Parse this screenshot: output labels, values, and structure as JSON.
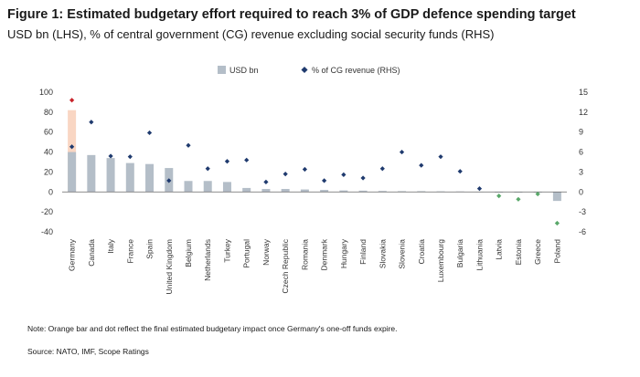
{
  "title": "Figure 1: Estimated budgetary effort required to reach 3% of GDP defence spending target",
  "subtitle": "USD bn (LHS), % of central government (CG) revenue excluding social security funds (RHS)",
  "note": "Note: Orange bar and dot reflect the final estimated budgetary impact once Germany's one-off funds expire.",
  "source": "Source: NATO, IMF, Scope Ratings",
  "colors": {
    "bar": "#b4bec8",
    "dot": "#1f3a6e",
    "negative_dot": "#5aa86a",
    "germany_final_bar": "#f9d6c3",
    "germany_final_dot": "#c8242b",
    "zero_line": "#666666"
  },
  "chart_data": {
    "type": "bar",
    "title": "Figure 1: Estimated budgetary effort required to reach 3% of GDP defence spending target",
    "legend_position": "top-center",
    "grid": false,
    "ylim_left": [
      -40,
      100
    ],
    "yticks_left": [
      -40,
      -20,
      0,
      20,
      40,
      60,
      80,
      100
    ],
    "ylim_right": [
      -6,
      15
    ],
    "yticks_right": [
      -6,
      -3,
      0,
      3,
      6,
      9,
      12,
      15
    ],
    "categories": [
      "Germany",
      "Canada",
      "Italy",
      "France",
      "Spain",
      "United Kingdom",
      "Belgium",
      "Netherlands",
      "Turkey",
      "Portugal",
      "Norway",
      "Czech Republic",
      "Romania",
      "Denmark",
      "Hungary",
      "Finland",
      "Slovakia",
      "Slovenia",
      "Croatia",
      "Luxembourg",
      "Bulgaria",
      "Lithuania",
      "Latvia",
      "Estonia",
      "Greece",
      "Poland"
    ],
    "series": [
      {
        "name": "USD bn",
        "axis": "left",
        "type": "bar",
        "values": [
          40,
          37,
          34,
          29,
          28,
          24,
          11,
          11,
          10,
          4,
          3,
          3,
          2.5,
          2,
          1.5,
          1.3,
          1,
          0.8,
          0.8,
          0.6,
          0.5,
          0.3,
          -0.3,
          -0.5,
          -0.5,
          -9
        ]
      },
      {
        "name": "% of CG revenue (RHS)",
        "axis": "right",
        "type": "scatter",
        "values": [
          6.8,
          10.5,
          5.4,
          5.3,
          8.9,
          1.7,
          7.0,
          3.5,
          4.6,
          4.8,
          1.5,
          2.7,
          3.4,
          1.7,
          2.6,
          2.1,
          3.5,
          6.0,
          4.0,
          5.3,
          3.1,
          0.5,
          -0.6,
          -1.1,
          -0.3,
          -4.7
        ]
      }
    ],
    "germany_final": {
      "category": "Germany",
      "usd_bn": 82,
      "pct_cg_revenue": 13.8
    }
  }
}
